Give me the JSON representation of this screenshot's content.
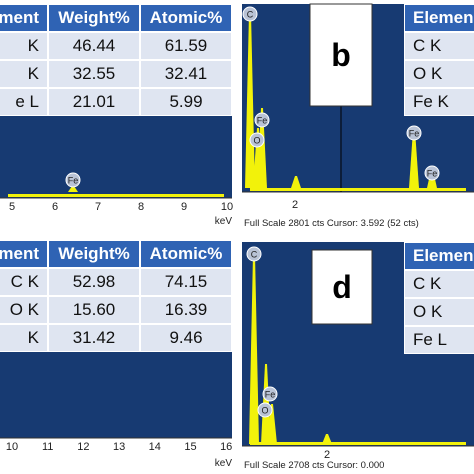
{
  "panels": [
    {
      "table": {
        "header": [
          "ement",
          "Weight%",
          "Atomic%"
        ],
        "rows": [
          [
            "K",
            "46.44",
            "61.59"
          ],
          [
            "K",
            "32.55",
            "32.41"
          ],
          [
            "e L",
            "21.01",
            "5.99"
          ]
        ]
      },
      "axis_labels": [
        "5",
        "6",
        "7",
        "8",
        "9",
        "10"
      ],
      "axis_unit": "keV",
      "peak_labels": [
        "Fe"
      ]
    },
    {
      "letter": "b",
      "table": {
        "header": [
          "Elemen"
        ],
        "rows": [
          [
            "C K"
          ],
          [
            "O K"
          ],
          [
            "Fe K"
          ]
        ]
      },
      "peak_labels": [
        "C",
        "Fe",
        "O",
        "Fe",
        "Fe"
      ],
      "axis_labels": [
        "2"
      ],
      "footer": "Full Scale 2801 cts Cursor: 3.592  (52 cts)"
    },
    {
      "table": {
        "header": [
          "ment",
          "Weight%",
          "Atomic%"
        ],
        "rows": [
          [
            "C K",
            "52.98",
            "74.15"
          ],
          [
            "O K",
            "15.60",
            "16.39"
          ],
          [
            "K",
            "31.42",
            "9.46"
          ]
        ]
      },
      "axis_labels": [
        "10",
        "11",
        "12",
        "13",
        "14",
        "15",
        "16"
      ],
      "axis_unit": "keV"
    },
    {
      "letter": "d",
      "table": {
        "header": [
          "Elemen"
        ],
        "rows": [
          [
            "C K"
          ],
          [
            "O K"
          ],
          [
            "Fe L"
          ]
        ]
      },
      "peak_labels": [
        "C",
        "Fe",
        "O"
      ],
      "axis_labels": [
        "2"
      ],
      "footer": "Full Scale 2708 cts Cursor: 0.000"
    }
  ]
}
